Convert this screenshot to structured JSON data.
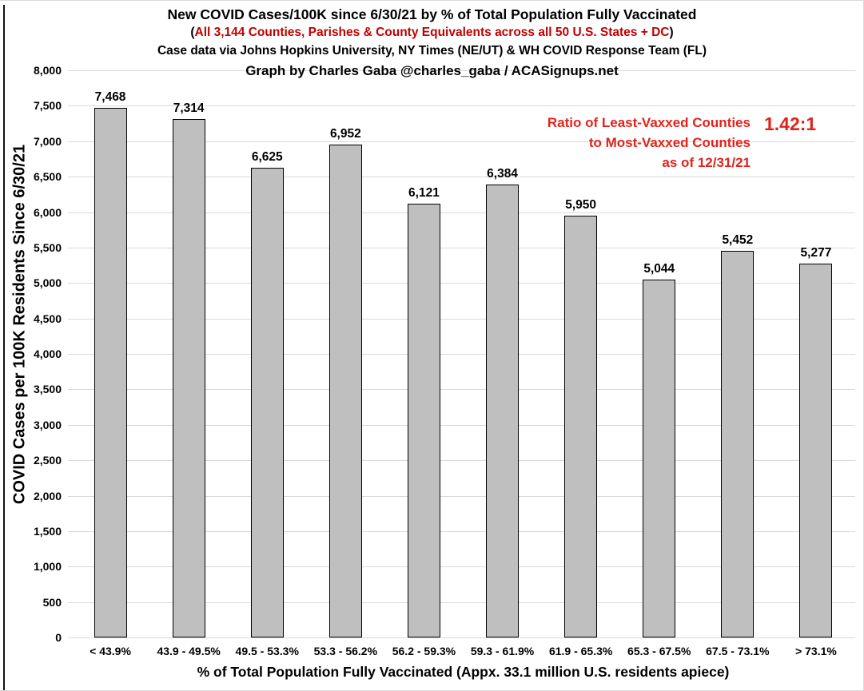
{
  "header": {
    "title": "New COVID Cases/100K since 6/30/21 by % of Total Population Fully Vaccinated",
    "subtitle_paren_open": "(",
    "subtitle": "All 3,144 Counties, Parishes & County Equivalents across all 50 U.S. States + DC",
    "subtitle_paren_close": ")",
    "source_line": "Case data via Johns Hopkins University, NY Times (NE/UT) & WH COVID Response Team (FL)",
    "credit_line": "Graph by Charles Gaba @charles_gaba / ACASignups.net"
  },
  "annotation": {
    "line1": "Ratio of Least-Vaxxed Counties",
    "line2": "to Most-Vaxxed Counties",
    "line3": "as of 12/31/21",
    "ratio_value": "1.42:1",
    "color": "#e2231a"
  },
  "colors": {
    "subtitle_red": "#c00000",
    "annotation_red": "#e2231a",
    "bar_fill": "#bfbfbf",
    "bar_stroke": "#000000",
    "gridline": "#d9d9d9",
    "text": "#000000"
  },
  "chart_data": {
    "type": "bar",
    "title": "New COVID Cases/100K since 6/30/21 by % of Total Population Fully Vaccinated",
    "categories": [
      "< 43.9%",
      "43.9 - 49.5%",
      "49.5 - 53.3%",
      "53.3 - 56.2%",
      "56.2 - 59.3%",
      "59.3 - 61.9%",
      "61.9 - 65.3%",
      "65.3 - 67.5%",
      "67.5 - 73.1%",
      "> 73.1%"
    ],
    "values": [
      7468,
      7314,
      6625,
      6952,
      6121,
      6384,
      5950,
      5044,
      5452,
      5277
    ],
    "value_labels": [
      "7,468",
      "7,314",
      "6,625",
      "6,952",
      "6,121",
      "6,384",
      "5,950",
      "5,044",
      "5,452",
      "5,277"
    ],
    "xlabel": "% of Total Population Fully Vaccinated (Appx. 33.1 million U.S. residents apiece)",
    "ylabel": "COVID Cases per 100K Residents Since 6/30/21",
    "ylim": [
      0,
      8000
    ],
    "ytick_step": 500,
    "ytick_labels": [
      "0",
      "500",
      "1,000",
      "1,500",
      "2,000",
      "2,500",
      "3,000",
      "3,500",
      "4,000",
      "4,500",
      "5,000",
      "5,500",
      "6,000",
      "6,500",
      "7,000",
      "7,500",
      "8,000"
    ],
    "grid": true,
    "legend": false
  }
}
